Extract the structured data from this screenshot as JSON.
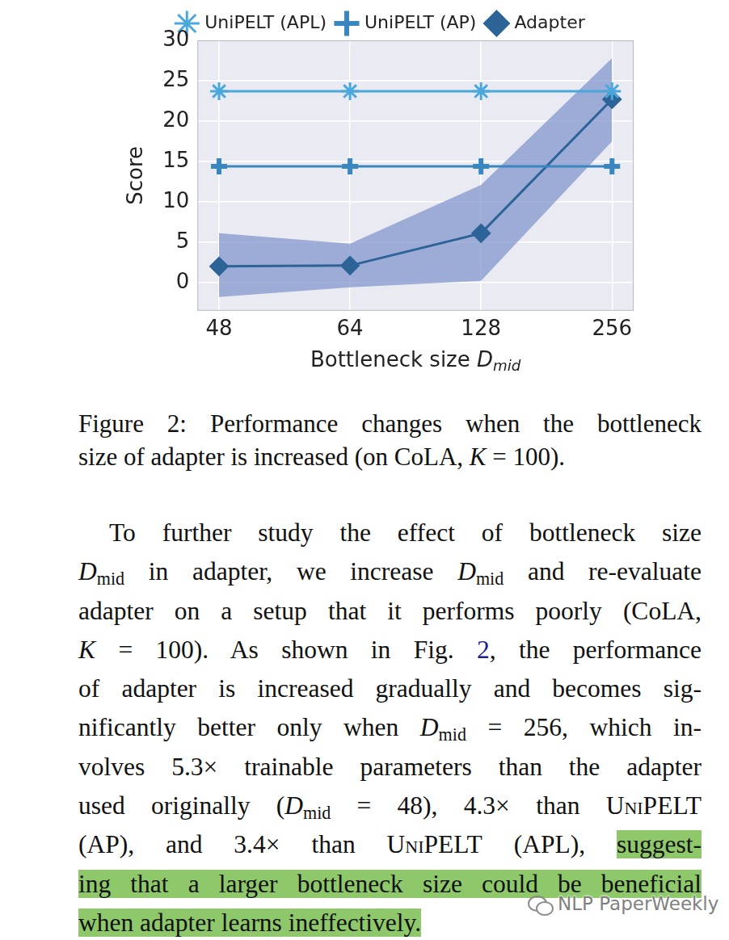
{
  "chart_data": {
    "type": "line",
    "categories": [
      "48",
      "64",
      "128",
      "256"
    ],
    "xlabel": [
      "Bottleneck size ",
      {
        "text": "D",
        "style": "italic"
      },
      {
        "text": "mid",
        "style": "italic_sub"
      }
    ],
    "ylabel": "Score",
    "ylim": [
      -3.5,
      30
    ],
    "yticks": [
      0,
      5,
      10,
      15,
      20,
      25,
      30
    ],
    "grid": true,
    "legend": "top",
    "series": [
      {
        "name": "UniPELT (APL)",
        "color": "#4aa8dc",
        "marker": "star",
        "values": [
          23.7,
          23.7,
          23.7,
          23.7
        ]
      },
      {
        "name": "UniPELT (AP)",
        "color": "#3a87bf",
        "marker": "plus",
        "values": [
          14.4,
          14.4,
          14.4,
          14.4
        ]
      },
      {
        "name": "Adapter",
        "color": "#2c6497",
        "marker": "diamond",
        "values": [
          2.0,
          2.1,
          6.1,
          22.7
        ],
        "band": {
          "lower": [
            -1.8,
            -0.6,
            0.2,
            17.5
          ],
          "upper": [
            6.1,
            4.8,
            12.1,
            27.8
          ],
          "color": "#8093cc"
        }
      }
    ]
  },
  "caption": [
    [
      "Figure 2:  Performance changes when the bottleneck"
    ],
    [
      "size of adapter is increased (on CoLA, ",
      {
        "text": "K",
        "style": "italic"
      },
      " = 100)."
    ]
  ],
  "paragraph": [
    [
      "To further study the effect of bottleneck size"
    ],
    [
      {
        "text": "D",
        "style": "italic"
      },
      {
        "text": "mid",
        "style": "sub"
      },
      " in adapter, we increase ",
      {
        "text": "D",
        "style": "italic"
      },
      {
        "text": "mid",
        "style": "sub"
      },
      " and re-evaluate"
    ],
    [
      "adapter on a setup that it performs poorly (CoLA,"
    ],
    [
      {
        "text": "K",
        "style": "italic"
      },
      " = 100).  As shown in Fig. ",
      {
        "text": "2",
        "style": "link"
      },
      ", the performance"
    ],
    [
      "of adapter is increased gradually and becomes sig-"
    ],
    [
      "nificantly better only when ",
      {
        "text": "D",
        "style": "italic"
      },
      {
        "text": "mid",
        "style": "sub"
      },
      " = 256, which in-"
    ],
    [
      "volves 5.3× trainable parameters than the adapter"
    ],
    [
      "used originally (",
      {
        "text": "D",
        "style": "italic"
      },
      {
        "text": "mid",
        "style": "sub"
      },
      " = 48), 4.3× than ",
      {
        "text": "UniPELT",
        "style": "smallcaps"
      }
    ],
    [
      "(AP), and 3.4× than ",
      {
        "text": "UniPELT",
        "style": "smallcaps"
      },
      " (APL), ",
      {
        "text": "suggest-",
        "style": "highlight"
      }
    ],
    [
      {
        "text": "ing that a larger bottleneck size could be beneficial",
        "style": "highlight"
      }
    ],
    [
      {
        "text": "when adapter learns ineffectively.",
        "style": "highlight"
      }
    ]
  ],
  "watermark": "NLP PaperWeekly"
}
